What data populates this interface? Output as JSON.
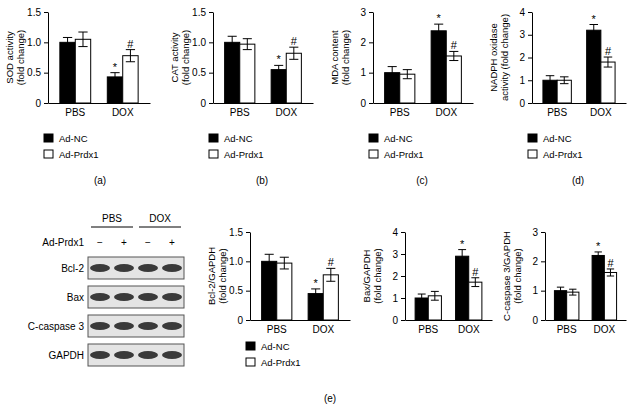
{
  "chart_data": [
    {
      "type": "bar",
      "caption": "(a)",
      "ylabel": [
        "SOD activity",
        "(fold change)"
      ],
      "categories": [
        "PBS",
        "DOX"
      ],
      "ylim": [
        0,
        1.5
      ],
      "yticks": [
        0,
        0.5,
        {
          "value": 1,
          "label": "1.0"
        },
        1.5
      ],
      "legend": "bottom",
      "series": [
        {
          "name": "Ad-NC",
          "color": "#000000",
          "values": [
            1.0,
            0.43
          ],
          "errors": [
            0.08,
            0.07
          ],
          "significance": [
            null,
            "*"
          ]
        },
        {
          "name": "Ad-Prdx1",
          "color": "#ffffff",
          "values": [
            1.05,
            0.78
          ],
          "errors": [
            0.12,
            0.1
          ],
          "significance": [
            null,
            "#"
          ]
        }
      ]
    },
    {
      "type": "bar",
      "caption": "(b)",
      "ylabel": [
        "CAT activity",
        "(fold change)"
      ],
      "categories": [
        "PBS",
        "DOX"
      ],
      "ylim": [
        0,
        1.5
      ],
      "yticks": [
        0,
        0.5,
        {
          "value": 1,
          "label": "1.0"
        },
        1.5
      ],
      "legend": "bottom",
      "series": [
        {
          "name": "Ad-NC",
          "color": "#000000",
          "values": [
            1.0,
            0.55
          ],
          "errors": [
            0.1,
            0.07
          ],
          "significance": [
            null,
            "*"
          ]
        },
        {
          "name": "Ad-Prdx1",
          "color": "#ffffff",
          "values": [
            0.97,
            0.82
          ],
          "errors": [
            0.09,
            0.1
          ],
          "significance": [
            null,
            "#"
          ]
        }
      ]
    },
    {
      "type": "bar",
      "caption": "(c)",
      "ylabel": [
        "MDA content",
        "(fold change)"
      ],
      "categories": [
        "PBS",
        "DOX"
      ],
      "ylim": [
        0,
        3
      ],
      "yticks": [
        0,
        1,
        2,
        3
      ],
      "legend": "bottom",
      "series": [
        {
          "name": "Ad-NC",
          "color": "#000000",
          "values": [
            1.0,
            2.38
          ],
          "errors": [
            0.2,
            0.22
          ],
          "significance": [
            null,
            "*"
          ]
        },
        {
          "name": "Ad-Prdx1",
          "color": "#ffffff",
          "values": [
            0.95,
            1.55
          ],
          "errors": [
            0.15,
            0.15
          ],
          "significance": [
            null,
            "#"
          ]
        }
      ]
    },
    {
      "type": "bar",
      "caption": "(d)",
      "ylabel": [
        "NADPH oxidase",
        "activity (fold change)"
      ],
      "categories": [
        "PBS",
        "DOX"
      ],
      "ylim": [
        0,
        4
      ],
      "yticks": [
        0,
        1,
        2,
        3,
        4
      ],
      "legend": "bottom",
      "series": [
        {
          "name": "Ad-NC",
          "color": "#000000",
          "values": [
            1.0,
            3.2
          ],
          "errors": [
            0.2,
            0.25
          ],
          "significance": [
            null,
            "*"
          ]
        },
        {
          "name": "Ad-Prdx1",
          "color": "#ffffff",
          "values": [
            1.0,
            1.8
          ],
          "errors": [
            0.15,
            0.22
          ],
          "significance": [
            null,
            "#"
          ]
        }
      ]
    },
    {
      "type": "blot",
      "caption": "(e)",
      "groups": [
        "PBS",
        "DOX"
      ],
      "row_label": "Ad-Prdx1",
      "lanes": [
        "−",
        "+",
        "−",
        "+"
      ],
      "proteins": [
        "Bcl-2",
        "Bax",
        "C-caspase 3",
        "GAPDH"
      ]
    },
    {
      "type": "bar",
      "ylabel": [
        "Bcl-2/GAPDH",
        "(fold change)"
      ],
      "categories": [
        "PBS",
        "DOX"
      ],
      "ylim": [
        0,
        1.5
      ],
      "yticks": [
        0,
        0.5,
        {
          "value": 1,
          "label": "1.0"
        },
        1.5
      ],
      "legend": "bottom",
      "series": [
        {
          "name": "Ad-NC",
          "color": "#000000",
          "values": [
            1.0,
            0.45
          ],
          "errors": [
            0.12,
            0.08
          ],
          "significance": [
            null,
            "*"
          ]
        },
        {
          "name": "Ad-Prdx1",
          "color": "#ffffff",
          "values": [
            0.97,
            0.77
          ],
          "errors": [
            0.1,
            0.11
          ],
          "significance": [
            null,
            "#"
          ]
        }
      ]
    },
    {
      "type": "bar",
      "ylabel": [
        "Bax/GAPDH",
        "(fold change)"
      ],
      "categories": [
        "PBS",
        "DOX"
      ],
      "ylim": [
        0,
        4
      ],
      "yticks": [
        0,
        1,
        2,
        3,
        4
      ],
      "series": [
        {
          "color": "#000000",
          "values": [
            1.0,
            2.9
          ],
          "errors": [
            0.18,
            0.3
          ],
          "significance": [
            null,
            "*"
          ]
        },
        {
          "color": "#ffffff",
          "values": [
            1.1,
            1.72
          ],
          "errors": [
            0.2,
            0.2
          ],
          "significance": [
            null,
            "#"
          ]
        }
      ]
    },
    {
      "type": "bar",
      "ylabel": [
        "C-caspase 3/GAPDH",
        "(fold change)"
      ],
      "categories": [
        "PBS",
        "DOX"
      ],
      "ylim": [
        0,
        3
      ],
      "yticks": [
        0,
        1,
        2,
        3
      ],
      "series": [
        {
          "color": "#000000",
          "values": [
            1.0,
            2.2
          ],
          "errors": [
            0.12,
            0.12
          ],
          "significance": [
            null,
            "*"
          ]
        },
        {
          "color": "#ffffff",
          "values": [
            0.95,
            1.62
          ],
          "errors": [
            0.1,
            0.12
          ],
          "significance": [
            null,
            "#"
          ]
        }
      ]
    }
  ]
}
